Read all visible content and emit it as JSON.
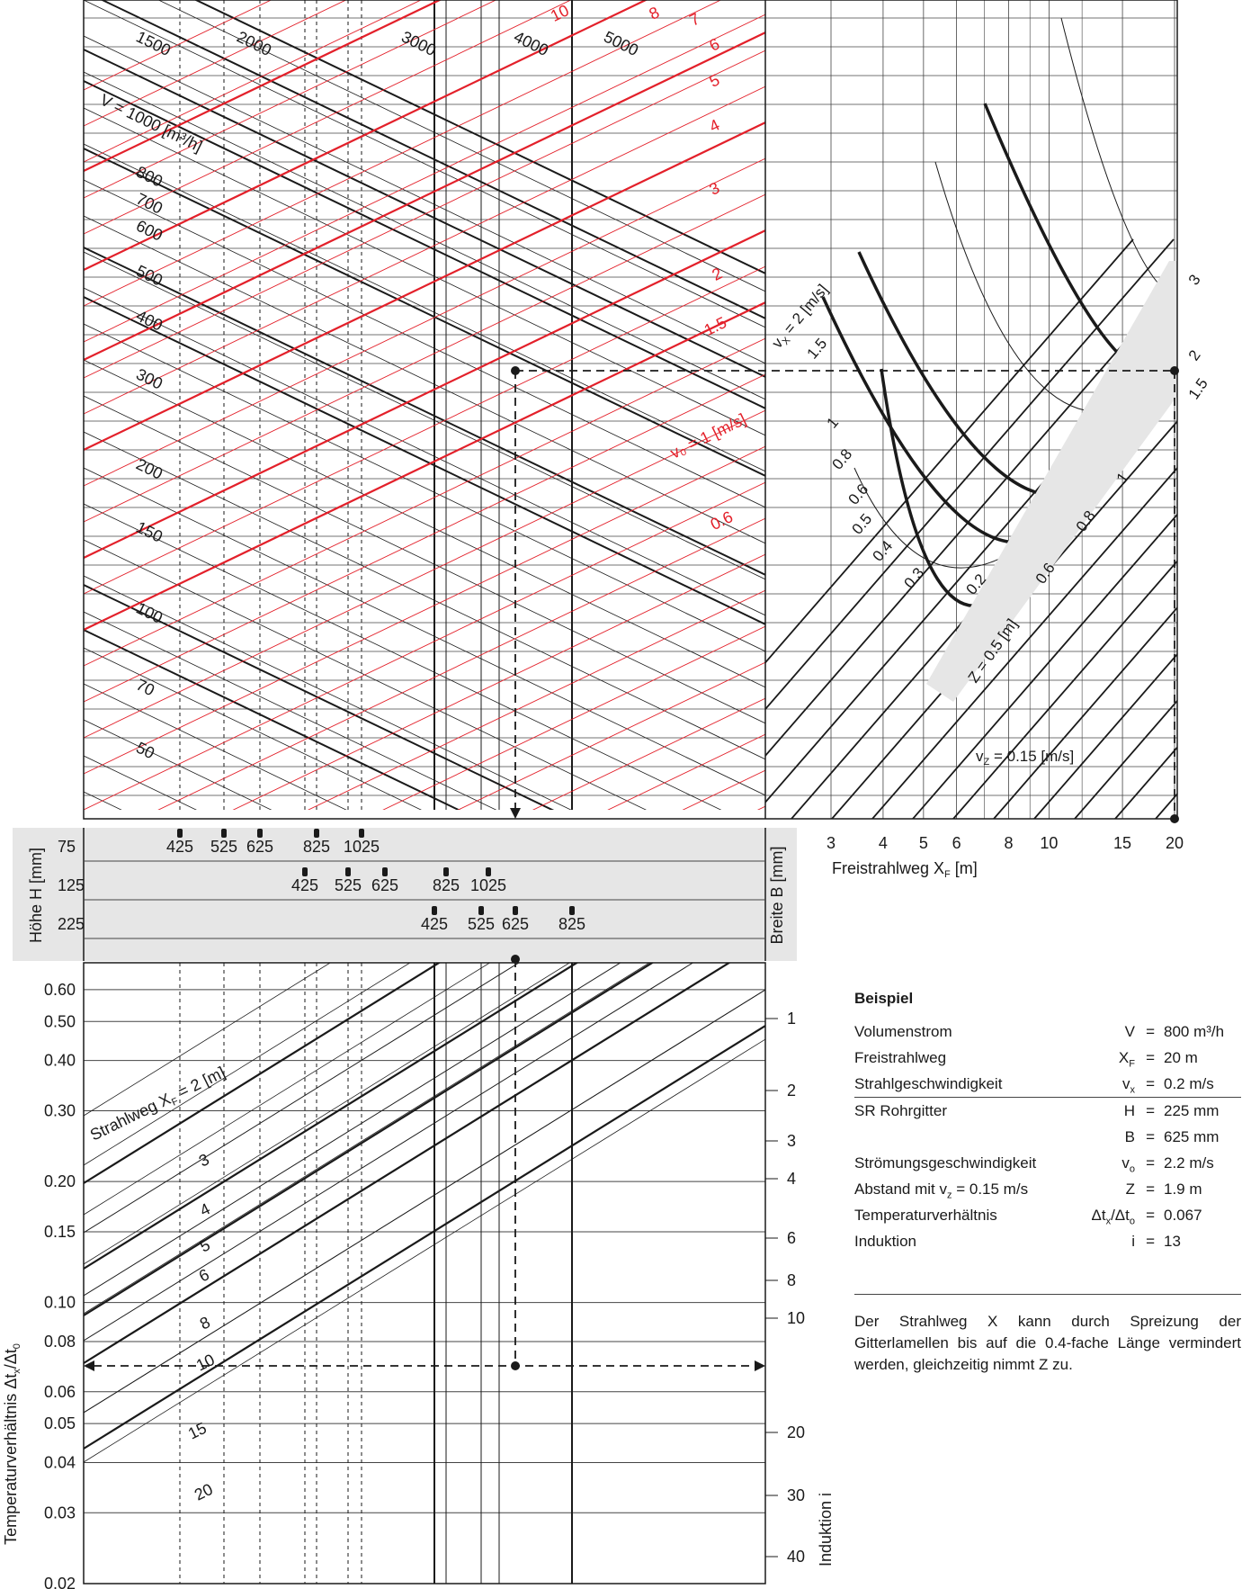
{
  "colors": {
    "black": "#1a1a1a",
    "red": "#e3202a",
    "panel": "#e6e6e6",
    "dashed": "#1a1a1a"
  },
  "chart_data": [
    {
      "type": "line",
      "panel": "top-left nomogram",
      "title": "",
      "volume_flow_labels": [
        "1500",
        "2000",
        "3000",
        "4000",
        "5000",
        "V = 1000 [m³/h]",
        "800",
        "700",
        "600",
        "500",
        "400",
        "300",
        "200",
        "150",
        "100",
        "70",
        "50"
      ],
      "outlet_velocity_labels": [
        "10",
        "8",
        "7",
        "6",
        "5",
        "4",
        "3",
        "2",
        "1.5",
        "v₀ = 1 [m/s]",
        "0.6"
      ],
      "series": [
        {
          "name": "V [m³/h]",
          "values": [
            1500,
            2000,
            3000,
            4000,
            5000,
            1000,
            800,
            700,
            600,
            500,
            400,
            300,
            200,
            150,
            100,
            70,
            50
          ]
        },
        {
          "name": "v₀ [m/s]",
          "values": [
            10,
            8,
            7,
            6,
            5,
            4,
            3,
            2,
            1.5,
            1,
            0.6
          ]
        }
      ]
    },
    {
      "type": "line",
      "panel": "top-right nomogram",
      "title": "",
      "xlabel": "Freistrahlweg X",
      "xlabel_sub": "F",
      "xlabel_unit": "[m]",
      "x_scale": "log",
      "x_ticks": [
        "3",
        "4",
        "5",
        "6",
        "8",
        "10",
        "15",
        "20"
      ],
      "x_tick_values": [
        3,
        4,
        5,
        6,
        8,
        10,
        15,
        20
      ],
      "vx_labels": [
        "v",
        "X",
        " = 2 [m/s]",
        "1.5",
        "1",
        "0.8",
        "0.6",
        "0.5",
        "0.4",
        "0.3",
        "0.2"
      ],
      "vx_values": [
        2,
        1.5,
        1,
        0.8,
        0.6,
        0.5,
        0.4,
        0.3,
        0.2
      ],
      "z_labels": [
        "3",
        "2",
        "1.5",
        "1",
        "0.8",
        "0.6",
        "Z = 0.5 [m]"
      ],
      "z_values": [
        3,
        2,
        1.5,
        1,
        0.8,
        0.6,
        0.5
      ],
      "vz_label": "v",
      "vz_sub": "Z",
      "vz_rest": " = 0.15 [m/s]"
    },
    {
      "type": "table",
      "panel": "grille size scale",
      "left_label": "Höhe H [mm]",
      "right_label": "Breite B [mm]",
      "rows": [
        {
          "height": "75",
          "widths": [
            "425",
            "525",
            "625",
            "825",
            "1025"
          ]
        },
        {
          "height": "125",
          "widths": [
            "425",
            "525",
            "625",
            "825",
            "1025"
          ]
        },
        {
          "height": "225",
          "widths": [
            "425",
            "525",
            "625",
            "825"
          ]
        }
      ]
    },
    {
      "type": "line",
      "panel": "bottom nomogram",
      "title": "",
      "ylabel": "Temperaturverhältnis Δt",
      "ylabel_sub1": "x",
      "ylabel_mid": "/Δt",
      "ylabel_sub2": "0",
      "y_scale": "log",
      "ylim": [
        0.02,
        0.7
      ],
      "y_ticks": [
        "0.60",
        "0.50",
        "0.40",
        "0.30",
        "0.20",
        "0.15",
        "0.10",
        "0.08",
        "0.06",
        "0.05",
        "0.04",
        "0.03",
        "0.02"
      ],
      "y_tick_values": [
        0.6,
        0.5,
        0.4,
        0.3,
        0.2,
        0.15,
        0.1,
        0.08,
        0.06,
        0.05,
        0.04,
        0.03,
        0.02
      ],
      "right_axis_label": "Induktion i",
      "right_ticks": [
        "1",
        "2",
        "3",
        "4",
        "6",
        "8",
        "10",
        "20",
        "30",
        "40"
      ],
      "right_tick_values": [
        1,
        2,
        3,
        4,
        6,
        8,
        10,
        20,
        30,
        40
      ],
      "series_label_prefix": "Strahlweg X",
      "series_label_sub": "F",
      "series_label_rest": " = 2 [m]",
      "series": [
        {
          "name": "2",
          "values": []
        },
        {
          "name": "3",
          "values": []
        },
        {
          "name": "4",
          "values": []
        },
        {
          "name": "5",
          "values": []
        },
        {
          "name": "6",
          "values": []
        },
        {
          "name": "8",
          "values": []
        },
        {
          "name": "10",
          "values": []
        },
        {
          "name": "15",
          "values": []
        },
        {
          "name": "20",
          "values": []
        }
      ]
    }
  ],
  "example": {
    "title": "Beispiel",
    "rows": [
      {
        "label": "Volumenstrom",
        "symbol": "V",
        "value": "800  m³/h"
      },
      {
        "label": "Freistrahlweg",
        "symbol": "X",
        "symbol_sub": "F",
        "value": "20  m"
      },
      {
        "label": "Strahlgeschwindigkeit",
        "symbol": "v",
        "symbol_sub": "x",
        "value": "0.2  m/s"
      },
      {
        "label": "SR Rohrgitter",
        "symbol": "H",
        "value": "225  mm"
      },
      {
        "label": "",
        "symbol": "B",
        "value": "625  mm"
      },
      {
        "label": "Strömungsgeschwindigkeit",
        "symbol": "v",
        "symbol_sub": "o",
        "value": "2.2  m/s"
      },
      {
        "label": "Abstand mit v",
        "label_sub": "z",
        "label_rest": " = 0.15 m/s",
        "symbol": "Z",
        "value": "1.9  m"
      },
      {
        "label": "Temperaturverhältnis",
        "symbol": "Δt",
        "symbol_sub": "x",
        "symbol_rest": "/Δt",
        "symbol_sub2": "o",
        "value": "0.067"
      },
      {
        "label": "Induktion",
        "symbol": "i",
        "value": "13"
      }
    ],
    "equals": "=",
    "note": "Der Strahlweg X kann durch Spreizung der Gitterlamellen bis auf die 0.4-fache Länge vermindert werden, gleichzeitig nimmt Z zu."
  }
}
